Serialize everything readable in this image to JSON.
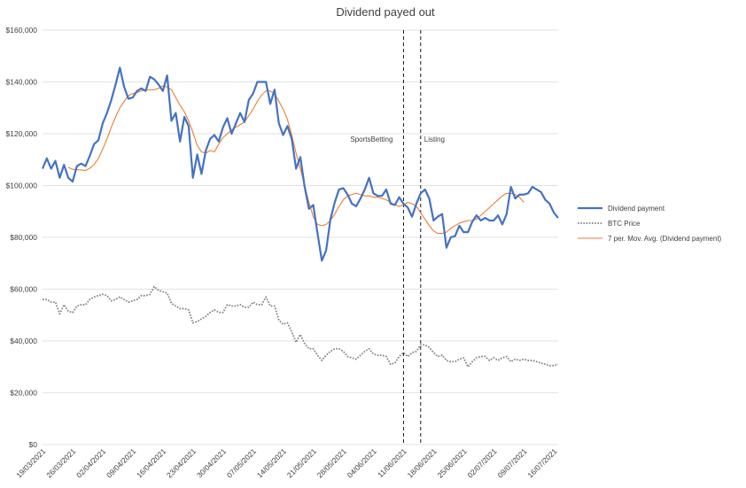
{
  "chart_data": {
    "type": "line",
    "title": "Dividend payed out",
    "xlabel": "",
    "ylabel": "",
    "ylim": [
      0,
      160000
    ],
    "yticks": [
      "$0",
      "$20,000",
      "$40,000",
      "$60,000",
      "$80,000",
      "$100,000",
      "$120,000",
      "$140,000",
      "$160,000"
    ],
    "ytick_values": [
      0,
      20000,
      40000,
      60000,
      80000,
      100000,
      120000,
      140000,
      160000
    ],
    "grid": true,
    "legend_position": "right",
    "start_date": "2021-03-19",
    "xtick_labels": [
      "19/03/2021",
      "26/03/2021",
      "02/04/2021",
      "09/04/2021",
      "16/04/2021",
      "23/04/2021",
      "30/04/2021",
      "07/05/2021",
      "14/05/2021",
      "21/05/2021",
      "28/05/2021",
      "04/06/2021",
      "11/06/2021",
      "18/06/2021",
      "25/06/2021",
      "02/07/2021",
      "09/07/2021",
      "16/07/2021"
    ],
    "annotations": [
      {
        "label": "SportsBetting",
        "x": "2021-06-11"
      },
      {
        "label": "Listing",
        "x": "2021-06-15"
      }
    ],
    "series": [
      {
        "name": "Dividend payment",
        "color": "#4472C4",
        "style": "solid",
        "values": [
          106500,
          110500,
          106500,
          109500,
          103000,
          108000,
          103000,
          101500,
          107500,
          108500,
          107500,
          111500,
          116000,
          117500,
          124000,
          128000,
          133000,
          139000,
          145500,
          138000,
          133500,
          134000,
          136500,
          137500,
          136500,
          142000,
          141000,
          139000,
          136500,
          142500,
          125000,
          128000,
          117000,
          126500,
          123000,
          103000,
          112000,
          104500,
          113500,
          118000,
          119500,
          117000,
          122500,
          126000,
          120000,
          124000,
          128000,
          124500,
          133000,
          135500,
          140000,
          140000,
          140000,
          131500,
          137000,
          124000,
          119500,
          123000,
          118000,
          106500,
          111000,
          99500,
          91000,
          92500,
          81500,
          71000,
          75000,
          87000,
          93500,
          98500,
          99000,
          96500,
          93000,
          92000,
          95000,
          98500,
          103000,
          97000,
          96000,
          96000,
          98500,
          93000,
          92500,
          95500,
          93000,
          91500,
          88000,
          93000,
          97000,
          98500,
          95000,
          86500,
          88000,
          89000,
          76000,
          80000,
          80500,
          84500,
          82000,
          82000,
          86000,
          88500,
          86500,
          87500,
          86500,
          86500,
          88500,
          85000,
          89000,
          99500,
          95000,
          96500,
          96500,
          97000,
          99500,
          98500,
          97500,
          94500,
          93000,
          89500,
          87500
        ]
      },
      {
        "name": "BTC Price",
        "color": "#808080",
        "style": "dotted",
        "values": [
          56000,
          56000,
          55000,
          55000,
          50500,
          54000,
          51500,
          51000,
          53500,
          54000,
          54000,
          56000,
          57000,
          57500,
          58000,
          57500,
          55500,
          56000,
          57000,
          56000,
          55000,
          55500,
          56000,
          57500,
          57500,
          58000,
          61000,
          59500,
          59000,
          58500,
          54500,
          53500,
          52500,
          52500,
          52000,
          47000,
          47500,
          48500,
          49500,
          51000,
          52000,
          51000,
          51000,
          54000,
          53500,
          53500,
          54000,
          53000,
          53000,
          55000,
          54000,
          54000,
          57000,
          53500,
          53500,
          48000,
          46500,
          47000,
          43500,
          39500,
          42500,
          39000,
          37000,
          37000,
          34500,
          32500,
          34500,
          36000,
          37000,
          37000,
          36000,
          34000,
          33500,
          33000,
          34500,
          36000,
          37000,
          35000,
          34500,
          34500,
          34000,
          31000,
          31500,
          34000,
          35500,
          34000,
          35500,
          36000,
          38500,
          38500,
          37500,
          35500,
          34000,
          34500,
          32500,
          32000,
          32000,
          33000,
          33500,
          30000,
          32000,
          33500,
          34000,
          34000,
          32500,
          33500,
          32500,
          33500,
          34000,
          32000,
          33000,
          32500,
          33000,
          32500,
          32500,
          32000,
          31500,
          31000,
          30500,
          30500,
          31000
        ]
      },
      {
        "name": "7 per. Mov. Avg. (Dividend payment)",
        "color": "#ED7D31",
        "style": "solid",
        "start_index": 6,
        "values": [
          107000,
          106300,
          106100,
          106000,
          105800,
          106700,
          108100,
          110500,
          114000,
          118000,
          122500,
          126500,
          130000,
          132500,
          134700,
          135500,
          136000,
          136500,
          137000,
          137000,
          137000,
          137500,
          138500,
          138000,
          137000,
          134000,
          131000,
          128500,
          125000,
          120500,
          115500,
          113000,
          112500,
          113500,
          113000,
          116000,
          118500,
          120000,
          121500,
          122500,
          123500,
          124500,
          127000,
          129500,
          132500,
          135000,
          136500,
          136500,
          135500,
          132500,
          129500,
          125500,
          119500,
          112500,
          106500,
          100000,
          93500,
          88000,
          85000,
          84500,
          85000,
          86500,
          89000,
          92000,
          94500,
          96000,
          96500,
          97000,
          96500,
          96000,
          96000,
          95500,
          95500,
          95000,
          94500,
          93500,
          92500,
          92000,
          92500,
          93500,
          93000,
          92000,
          89500,
          87000,
          84500,
          82500,
          81500,
          81500,
          82000,
          83500,
          84500,
          85500,
          86000,
          86500,
          86500,
          87000,
          88500,
          90000,
          91500,
          93000,
          94500,
          96000,
          97000,
          97000,
          96500,
          95500,
          93500
        ]
      }
    ]
  }
}
